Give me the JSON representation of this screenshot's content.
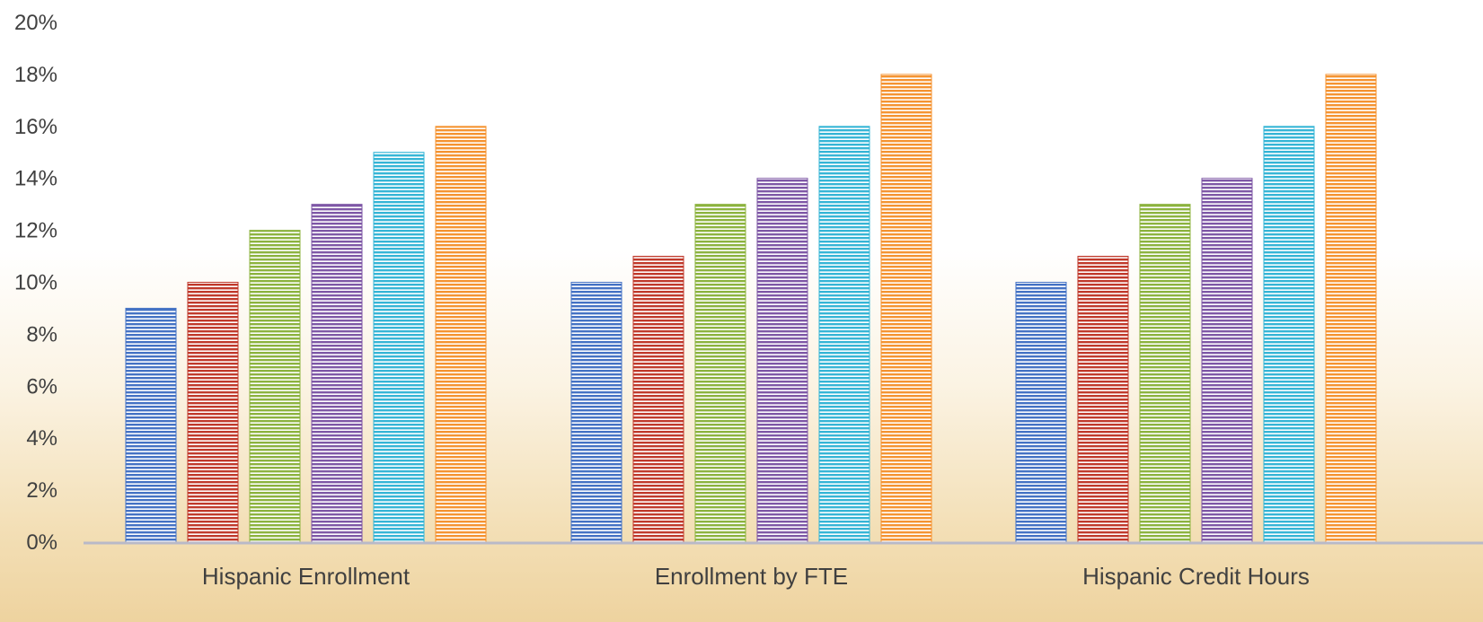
{
  "chart_data": {
    "type": "bar",
    "title": "",
    "xlabel": "",
    "ylabel": "",
    "categories": [
      "Hispanic Enrollment",
      "Enrollment by FTE",
      "Hispanic Credit Hours"
    ],
    "series": [
      {
        "values": [
          9,
          10,
          10
        ],
        "color": "#4472c4"
      },
      {
        "values": [
          10,
          11,
          11
        ],
        "color": "#c0392b"
      },
      {
        "values": [
          12,
          13,
          13
        ],
        "color": "#8cb33e"
      },
      {
        "values": [
          13,
          14,
          14
        ],
        "color": "#7e57a6"
      },
      {
        "values": [
          15,
          16,
          16
        ],
        "color": "#35b5d6"
      },
      {
        "values": [
          16,
          18,
          18
        ],
        "color": "#f59331"
      }
    ],
    "ylim": [
      0,
      20
    ],
    "yticks": [
      "0%",
      "2%",
      "4%",
      "6%",
      "8%",
      "10%",
      "12%",
      "14%",
      "16%",
      "18%",
      "20%"
    ],
    "grid": false,
    "legend": "none",
    "axis_color": "#b9b9c8",
    "bar_pattern": "horizontal-stripes"
  }
}
